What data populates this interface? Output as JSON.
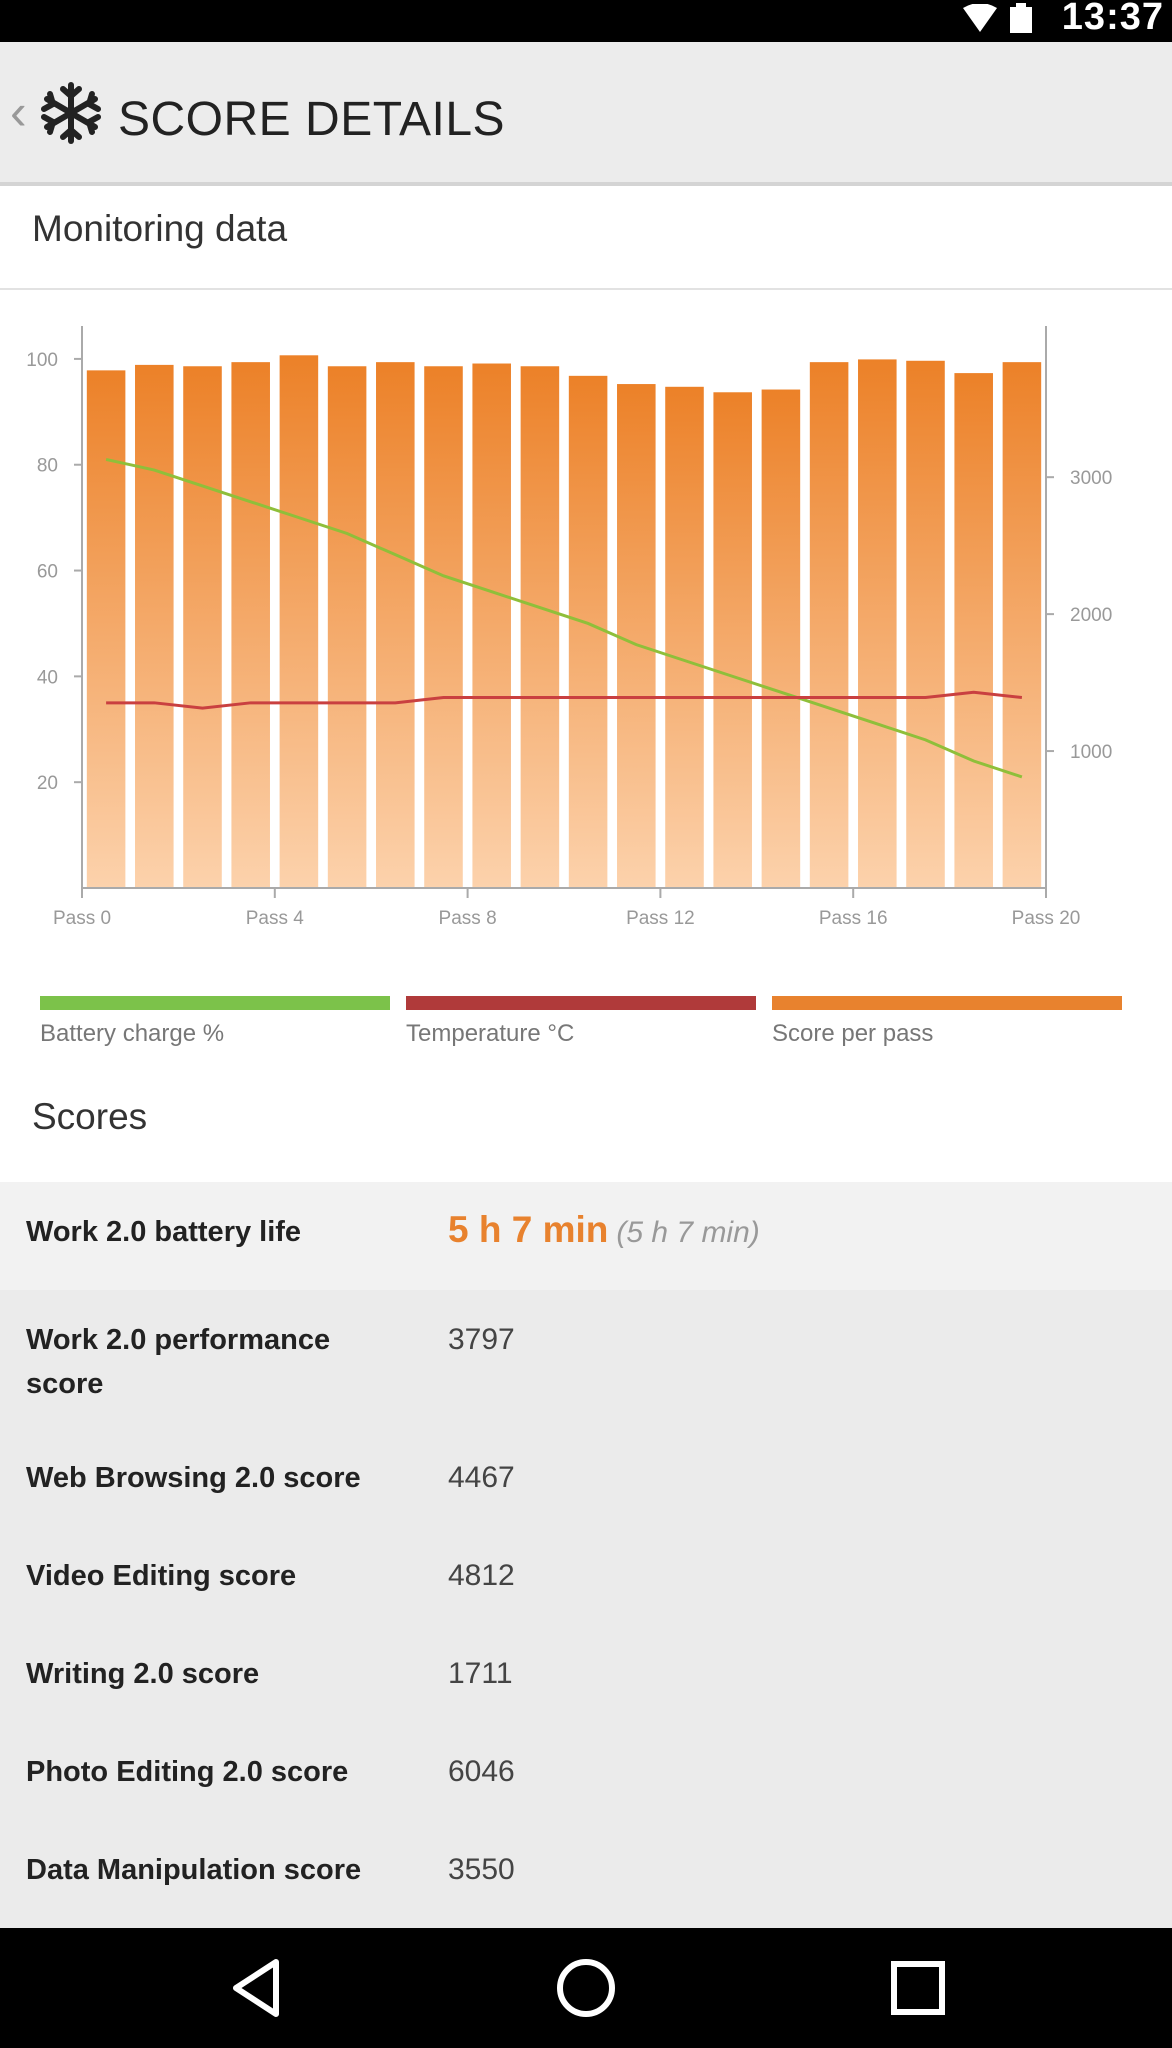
{
  "status_bar": {
    "time": "13:37"
  },
  "app_bar": {
    "title": "SCORE DETAILS",
    "back_icon": "chevron-left-icon",
    "logo_icon": "snowflake-icon"
  },
  "monitoring": {
    "title": "Monitoring data",
    "legend": [
      {
        "label": "Battery charge %",
        "color": "#7cc24a"
      },
      {
        "label": "Temperature °C",
        "color": "#b03a3a"
      },
      {
        "label": "Score per pass",
        "color": "#e8822e"
      }
    ]
  },
  "chart_data": {
    "type": "bar",
    "x_ticks": [
      "Pass 0",
      "Pass 4",
      "Pass 8",
      "Pass 12",
      "Pass 16",
      "Pass 20"
    ],
    "left_axis": {
      "ticks": [
        20,
        40,
        60,
        80,
        100
      ],
      "ylim": [
        0,
        110
      ]
    },
    "right_axis": {
      "ticks": [
        1000,
        2000,
        3000
      ],
      "ylim": [
        0,
        4250
      ]
    },
    "x_range": [
      0,
      20
    ],
    "grid": false,
    "series": [
      {
        "name": "Score per pass",
        "kind": "bar",
        "axis": "right",
        "color": "#e8822e",
        "values": [
          3780,
          3820,
          3810,
          3840,
          3890,
          3810,
          3840,
          3810,
          3830,
          3810,
          3740,
          3680,
          3660,
          3620,
          3640,
          3840,
          3860,
          3850,
          3760,
          3840
        ]
      },
      {
        "name": "Battery charge %",
        "kind": "line",
        "axis": "left",
        "color": "#8fbf3a",
        "points": [
          [
            0,
            81
          ],
          [
            1,
            79
          ],
          [
            2,
            76
          ],
          [
            3,
            73
          ],
          [
            4,
            70
          ],
          [
            5,
            67
          ],
          [
            6,
            63
          ],
          [
            7,
            59
          ],
          [
            8,
            56
          ],
          [
            9,
            53
          ],
          [
            10,
            50
          ],
          [
            11,
            46
          ],
          [
            12,
            43
          ],
          [
            13,
            40
          ],
          [
            14,
            37
          ],
          [
            15,
            34
          ],
          [
            16,
            31
          ],
          [
            17,
            28
          ],
          [
            18,
            24
          ],
          [
            19,
            21
          ]
        ]
      },
      {
        "name": "Temperature °C",
        "kind": "line",
        "axis": "left",
        "color": "#c94040",
        "points": [
          [
            0,
            35
          ],
          [
            1,
            35
          ],
          [
            2,
            34
          ],
          [
            3,
            35
          ],
          [
            4,
            35
          ],
          [
            5,
            35
          ],
          [
            6,
            35
          ],
          [
            7,
            36
          ],
          [
            8,
            36
          ],
          [
            9,
            36
          ],
          [
            10,
            36
          ],
          [
            11,
            36
          ],
          [
            12,
            36
          ],
          [
            13,
            36
          ],
          [
            14,
            36
          ],
          [
            15,
            36
          ],
          [
            16,
            36
          ],
          [
            17,
            36
          ],
          [
            18,
            37
          ],
          [
            19,
            36
          ]
        ]
      }
    ]
  },
  "scores": {
    "title": "Scores",
    "rows": [
      {
        "label": "Work 2.0 battery life",
        "value": "5 h 7 min",
        "sub": "(5 h 7 min)"
      },
      {
        "label": "Work 2.0 performance score",
        "value": "3797"
      },
      {
        "label": "Web Browsing 2.0 score",
        "value": "4467"
      },
      {
        "label": "Video Editing score",
        "value": "4812"
      },
      {
        "label": "Writing 2.0 score",
        "value": "1711"
      },
      {
        "label": "Photo Editing 2.0 score",
        "value": "6046"
      },
      {
        "label": "Data Manipulation score",
        "value": "3550"
      }
    ]
  },
  "nav_bar": {
    "back_icon": "triangle-back-icon",
    "home_icon": "circle-home-icon",
    "recents_icon": "square-recents-icon"
  }
}
